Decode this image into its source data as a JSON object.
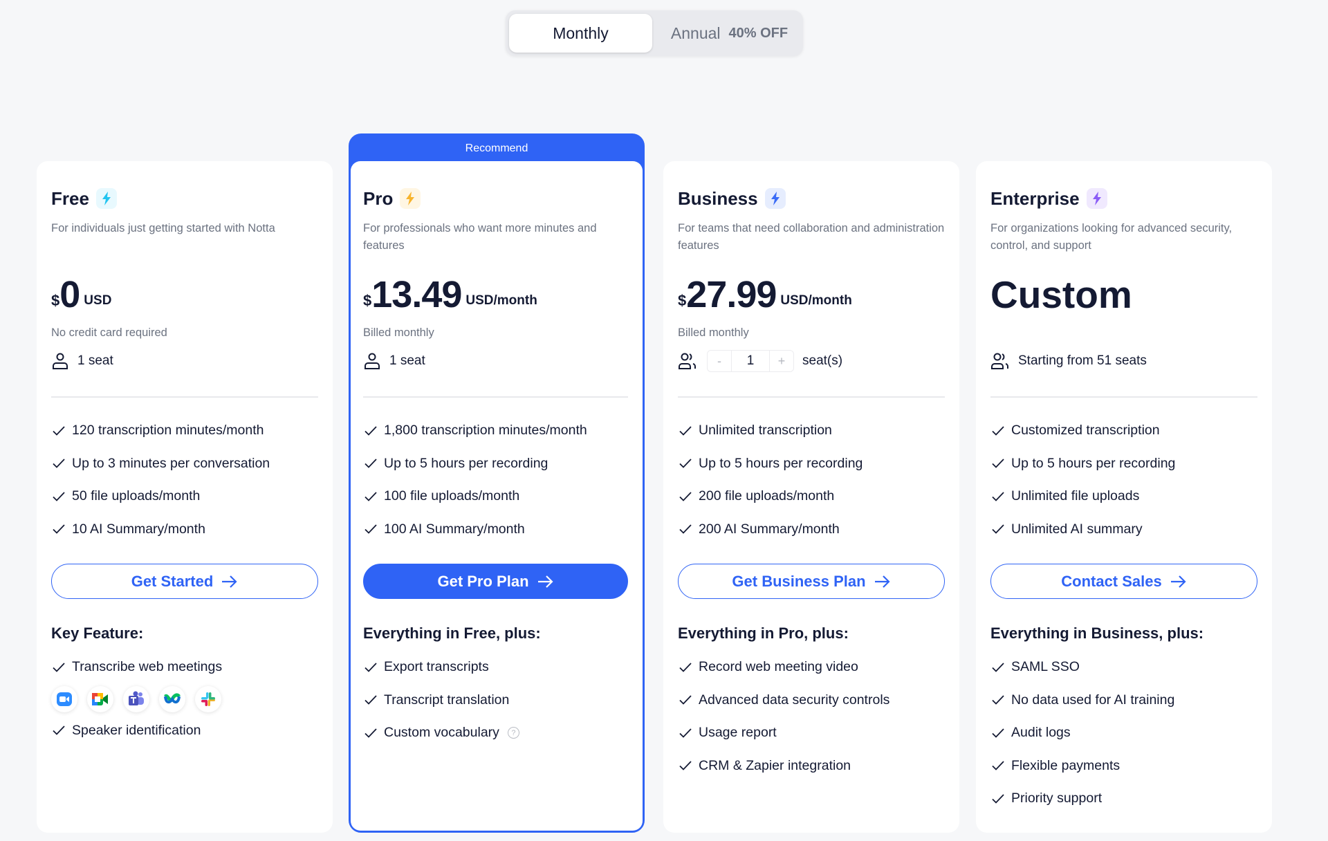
{
  "toggle": {
    "monthly": "Monthly",
    "annual": "Annual",
    "discount": "40% OFF",
    "selected": "Monthly"
  },
  "colors": {
    "accent": "#2f63f5",
    "free_bolt": "#22c4f0",
    "pro_bolt": "#f8b42c",
    "business_bolt": "#3b6cf6",
    "enterprise_bolt": "#8b5cf6"
  },
  "plans": [
    {
      "name": "Free",
      "icon": "lightning-icon",
      "desc": "For individuals just getting started with Notta",
      "currency": "$",
      "amount": "0",
      "unit": "USD",
      "billing": "No credit card required",
      "seats": "1 seat",
      "features": [
        "120 transcription minutes/month",
        "Up to 3 minutes per conversation",
        "50 file uploads/month",
        "10 AI Summary/month"
      ],
      "cta": "Get Started",
      "section": "Key Feature:",
      "extras": [
        "Transcribe web meetings",
        "Speaker identification"
      ],
      "apps": [
        "zoom-icon",
        "google-meet-icon",
        "microsoft-teams-icon",
        "webex-icon",
        "slack-icon"
      ]
    },
    {
      "name": "Pro",
      "badge": "Recommend",
      "icon": "lightning-icon",
      "desc": "For professionals who want more minutes and features",
      "currency": "$",
      "amount": "13.49",
      "unit": "USD/month",
      "billing": "Billed monthly",
      "seats": "1 seat",
      "features": [
        "1,800 transcription minutes/month",
        "Up to 5 hours per recording",
        "100 file uploads/month",
        "100 AI Summary/month"
      ],
      "cta": "Get Pro Plan",
      "section": "Everything in Free, plus:",
      "extras": [
        "Export transcripts",
        "Transcript translation",
        "Custom vocabulary"
      ]
    },
    {
      "name": "Business",
      "icon": "lightning-icon",
      "desc": "For teams that need collaboration and administration features",
      "currency": "$",
      "amount": "27.99",
      "unit": "USD/month",
      "billing": "Billed monthly",
      "seat_value": "1",
      "seat_minus": "-",
      "seat_plus": "+",
      "seats": "seat(s)",
      "features": [
        "Unlimited transcription",
        "Up to 5 hours per recording",
        "200 file uploads/month",
        "200 AI Summary/month"
      ],
      "cta": "Get Business Plan",
      "section": "Everything in Pro, plus:",
      "extras": [
        "Record web meeting video",
        "Advanced data security controls",
        "Usage report",
        "CRM & Zapier integration"
      ]
    },
    {
      "name": "Enterprise",
      "icon": "lightning-icon",
      "desc": "For organizations looking for advanced security, control, and support",
      "amount": "Custom",
      "seats": "Starting from 51 seats",
      "features": [
        "Customized transcription",
        "Up to 5 hours per recording",
        "Unlimited file uploads",
        "Unlimited AI summary"
      ],
      "cta": "Contact Sales",
      "section": "Everything in Business, plus:",
      "extras": [
        "SAML SSO",
        "No data used for AI training",
        "Audit logs",
        "Flexible payments",
        "Priority support"
      ]
    }
  ]
}
